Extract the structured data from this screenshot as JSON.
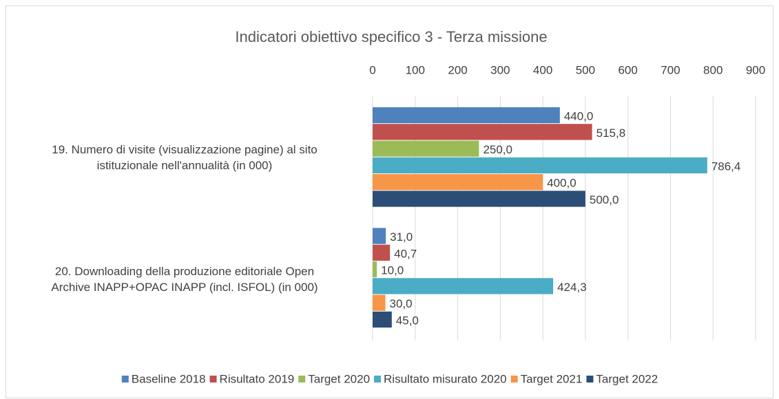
{
  "chart_data": {
    "type": "bar",
    "orientation": "horizontal",
    "title": "Indicatori obiettivo specifico 3 - Terza missione",
    "categories": [
      "19. Numero di visite (visualizzazione pagine) al sito\nistituzionale nell'annualità (in 000)",
      "20. Downloading della produzione editoriale Open\nArchive INAPP+OPAC INAPP (incl. ISFOL) (in 000)"
    ],
    "series": [
      {
        "name": "Baseline 2018",
        "color": "#4f81bd",
        "values": [
          440.0,
          31.0
        ],
        "value_labels": [
          "440,0",
          "31,0"
        ]
      },
      {
        "name": "Risultato 2019",
        "color": "#c0504d",
        "values": [
          515.8,
          40.7
        ],
        "value_labels": [
          "515,8",
          "40,7"
        ]
      },
      {
        "name": "Target 2020",
        "color": "#9bbb59",
        "values": [
          250.0,
          10.0
        ],
        "value_labels": [
          "250,0",
          "10,0"
        ]
      },
      {
        "name": "Risultato misurato 2020",
        "color": "#4bacc6",
        "values": [
          786.4,
          424.3
        ],
        "value_labels": [
          "786,4",
          "424,3"
        ]
      },
      {
        "name": "Target 2021",
        "color": "#f79646",
        "values": [
          400.0,
          30.0
        ],
        "value_labels": [
          "400,0",
          "30,0"
        ]
      },
      {
        "name": "Target 2022",
        "color": "#2c4d75",
        "values": [
          500.0,
          45.0
        ],
        "value_labels": [
          "500,0",
          "45,0"
        ]
      }
    ],
    "xlim": [
      0,
      900
    ],
    "xticks": [
      0,
      100,
      200,
      300,
      400,
      500,
      600,
      700,
      800,
      900
    ],
    "grid": true,
    "legend": "bottom"
  }
}
